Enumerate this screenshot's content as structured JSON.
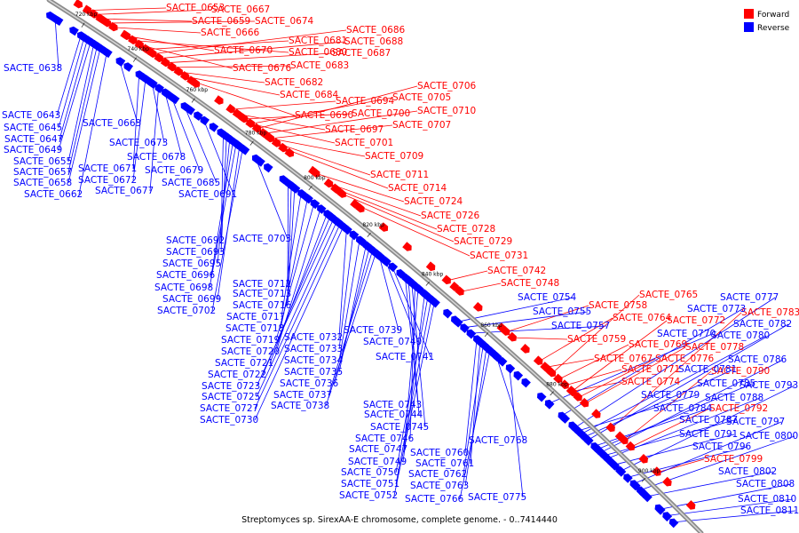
{
  "caption": "Streptomyces sp. SirexAA-E chromosome, complete genome. - 0..7414440",
  "legend": [
    {
      "label": "Forward",
      "color": "#ff0000"
    },
    {
      "label": "Reverse",
      "color": "#0000ff"
    }
  ],
  "colors": {
    "forward": "#ff0000",
    "reverse": "#0000ff",
    "backbone": "#9a9a9a"
  },
  "ticks": [
    {
      "label": "720 kbp",
      "t": 0.055
    },
    {
      "label": "740 kbp",
      "t": 0.135
    },
    {
      "label": "760 kbp",
      "t": 0.225
    },
    {
      "label": "780 kbp",
      "t": 0.315
    },
    {
      "label": "800 kbp",
      "t": 0.405
    },
    {
      "label": "820 kbp",
      "t": 0.495
    },
    {
      "label": "840 kbp",
      "t": 0.585
    },
    {
      "label": "860 kbp",
      "t": 0.675
    },
    {
      "label": "880 kbp",
      "t": 0.775
    },
    {
      "label": "900 kbp",
      "t": 0.915
    }
  ],
  "forward_genes": [
    {
      "label": "SACTE_0653",
      "t": 0.05
    },
    {
      "label": "SACTE_0667",
      "t": 0.06
    },
    {
      "label": "SACTE_0659",
      "t": 0.07
    },
    {
      "label": "SACTE_0674",
      "t": 0.08
    },
    {
      "label": "SACTE_0666",
      "t": 0.09
    },
    {
      "label": "SACTE_0686",
      "t": 0.15
    },
    {
      "label": "SACTE_0681",
      "t": 0.14
    },
    {
      "label": "SACTE_0688",
      "t": 0.16
    },
    {
      "label": "SACTE_0670",
      "t": 0.11
    },
    {
      "label": "SACTE_0680",
      "t": 0.12
    },
    {
      "label": "SACTE_0687",
      "t": 0.17
    },
    {
      "label": "SACTE_0676",
      "t": 0.13
    },
    {
      "label": "SACTE_0683",
      "t": 0.18
    },
    {
      "label": "SACTE_0682",
      "t": 0.19
    },
    {
      "label": "SACTE_0706",
      "t": 0.31
    },
    {
      "label": "SACTE_0684",
      "t": 0.2
    },
    {
      "label": "SACTE_0705",
      "t": 0.3
    },
    {
      "label": "SACTE_0694",
      "t": 0.27
    },
    {
      "label": "SACTE_0710",
      "t": 0.32
    },
    {
      "label": "SACTE_0690",
      "t": 0.21
    },
    {
      "label": "SACTE_0700",
      "t": 0.29
    },
    {
      "label": "SACTE_0707",
      "t": 0.33
    },
    {
      "label": "SACTE_0697",
      "t": 0.28
    },
    {
      "label": "SACTE_0701",
      "t": 0.3
    },
    {
      "label": "SACTE_0709",
      "t": 0.33
    },
    {
      "label": "SACTE_0711",
      "t": 0.34
    },
    {
      "label": "SACTE_0714",
      "t": 0.35
    },
    {
      "label": "SACTE_0724",
      "t": 0.4
    },
    {
      "label": "SACTE_0726",
      "t": 0.42
    },
    {
      "label": "SACTE_0728",
      "t": 0.43
    },
    {
      "label": "SACTE_0729",
      "t": 0.44
    },
    {
      "label": "SACTE_0731",
      "t": 0.46
    },
    {
      "label": "SACTE_0742",
      "t": 0.6
    },
    {
      "label": "SACTE_0748",
      "t": 0.62
    },
    {
      "label": "SACTE_0765",
      "t": 0.76
    },
    {
      "label": "SACTE_0758",
      "t": 0.69
    },
    {
      "label": "SACTE_0764",
      "t": 0.74
    },
    {
      "label": "SACTE_0772",
      "t": 0.79
    },
    {
      "label": "SACTE_0783",
      "t": 0.85
    },
    {
      "label": "SACTE_0759",
      "t": 0.7
    },
    {
      "label": "SACTE_0769",
      "t": 0.77
    },
    {
      "label": "SACTE_0778",
      "t": 0.81
    },
    {
      "label": "SACTE_0767",
      "t": 0.75
    },
    {
      "label": "SACTE_0776",
      "t": 0.8
    },
    {
      "label": "SACTE_0771",
      "t": 0.78
    },
    {
      "label": "SACTE_0790",
      "t": 0.87
    },
    {
      "label": "SACTE_0774",
      "t": 0.79
    },
    {
      "label": "SACTE_0792",
      "t": 0.88
    },
    {
      "label": "SACTE_0799",
      "t": 0.92
    }
  ],
  "reverse_genes": [
    {
      "label": "SACTE_0638",
      "t": 0.02
    },
    {
      "label": "SACTE_0643",
      "t": 0.06
    },
    {
      "label": "SACTE_0645",
      "t": 0.065
    },
    {
      "label": "SACTE_0663",
      "t": 0.12
    },
    {
      "label": "SACTE_0647",
      "t": 0.07
    },
    {
      "label": "SACTE_0649",
      "t": 0.075
    },
    {
      "label": "SACTE_0673",
      "t": 0.17
    },
    {
      "label": "SACTE_0655",
      "t": 0.08
    },
    {
      "label": "SACTE_0678",
      "t": 0.19
    },
    {
      "label": "SACTE_0671",
      "t": 0.15
    },
    {
      "label": "SACTE_0657",
      "t": 0.085
    },
    {
      "label": "SACTE_0679",
      "t": 0.2
    },
    {
      "label": "SACTE_0672",
      "t": 0.16
    },
    {
      "label": "SACTE_0658",
      "t": 0.09
    },
    {
      "label": "SACTE_0685",
      "t": 0.22
    },
    {
      "label": "SACTE_0662",
      "t": 0.1
    },
    {
      "label": "SACTE_0677",
      "t": 0.18
    },
    {
      "label": "SACTE_0691",
      "t": 0.25
    },
    {
      "label": "SACTE_0692",
      "t": 0.28
    },
    {
      "label": "SACTE_0703",
      "t": 0.33
    },
    {
      "label": "SACTE_0693",
      "t": 0.285
    },
    {
      "label": "SACTE_0695",
      "t": 0.29
    },
    {
      "label": "SACTE_0696",
      "t": 0.295
    },
    {
      "label": "SACTE_0712",
      "t": 0.38
    },
    {
      "label": "SACTE_0698",
      "t": 0.3
    },
    {
      "label": "SACTE_0713",
      "t": 0.385
    },
    {
      "label": "SACTE_0699",
      "t": 0.305
    },
    {
      "label": "SACTE_0716",
      "t": 0.39
    },
    {
      "label": "SACTE_0702",
      "t": 0.31
    },
    {
      "label": "SACTE_0717",
      "t": 0.4
    },
    {
      "label": "SACTE_0718",
      "t": 0.41
    },
    {
      "label": "SACTE_0739",
      "t": 0.52
    },
    {
      "label": "SACTE_0732",
      "t": 0.47
    },
    {
      "label": "SACTE_0719",
      "t": 0.42
    },
    {
      "label": "SACTE_0740",
      "t": 0.53
    },
    {
      "label": "SACTE_0733",
      "t": 0.48
    },
    {
      "label": "SACTE_0720",
      "t": 0.43
    },
    {
      "label": "SACTE_0741",
      "t": 0.54
    },
    {
      "label": "SACTE_0734",
      "t": 0.49
    },
    {
      "label": "SACTE_0721",
      "t": 0.44
    },
    {
      "label": "SACTE_0735",
      "t": 0.5
    },
    {
      "label": "SACTE_0722",
      "t": 0.445
    },
    {
      "label": "SACTE_0736",
      "t": 0.505
    },
    {
      "label": "SACTE_0723",
      "t": 0.45
    },
    {
      "label": "SACTE_0737",
      "t": 0.51
    },
    {
      "label": "SACTE_0725",
      "t": 0.455
    },
    {
      "label": "SACTE_0738",
      "t": 0.515
    },
    {
      "label": "SACTE_0727",
      "t": 0.46
    },
    {
      "label": "SACTE_0730",
      "t": 0.465
    },
    {
      "label": "SACTE_0754",
      "t": 0.64
    },
    {
      "label": "SACTE_0755",
      "t": 0.65
    },
    {
      "label": "SACTE_0757",
      "t": 0.66
    },
    {
      "label": "SACTE_0777",
      "t": 0.82
    },
    {
      "label": "SACTE_0773",
      "t": 0.8
    },
    {
      "label": "SACTE_0782",
      "t": 0.84
    },
    {
      "label": "SACTE_0770",
      "t": 0.78
    },
    {
      "label": "SACTE_0780",
      "t": 0.83
    },
    {
      "label": "SACTE_0786",
      "t": 0.86
    },
    {
      "label": "SACTE_0781",
      "t": 0.835
    },
    {
      "label": "SACTE_0785",
      "t": 0.855
    },
    {
      "label": "SACTE_0793",
      "t": 0.89
    },
    {
      "label": "SACTE_0779",
      "t": 0.825
    },
    {
      "label": "SACTE_0788",
      "t": 0.87
    },
    {
      "label": "SACTE_0784",
      "t": 0.85
    },
    {
      "label": "SACTE_0787",
      "t": 0.865
    },
    {
      "label": "SACTE_0797",
      "t": 0.91
    },
    {
      "label": "SACTE_0791",
      "t": 0.88
    },
    {
      "label": "SACTE_0800",
      "t": 0.92
    },
    {
      "label": "SACTE_0796",
      "t": 0.9
    },
    {
      "label": "SACTE_0802",
      "t": 0.93
    },
    {
      "label": "SACTE_0808",
      "t": 0.95
    },
    {
      "label": "SACTE_0810",
      "t": 0.96
    },
    {
      "label": "SACTE_0811",
      "t": 0.97
    },
    {
      "label": "SACTE_0743",
      "t": 0.56
    },
    {
      "label": "SACTE_0744",
      "t": 0.565
    },
    {
      "label": "SACTE_0745",
      "t": 0.57
    },
    {
      "label": "SACTE_0746",
      "t": 0.575
    },
    {
      "label": "SACTE_0768",
      "t": 0.7
    },
    {
      "label": "SACTE_0747",
      "t": 0.58
    },
    {
      "label": "SACTE_0760",
      "t": 0.67
    },
    {
      "label": "SACTE_0749",
      "t": 0.59
    },
    {
      "label": "SACTE_0761",
      "t": 0.675
    },
    {
      "label": "SACTE_0750",
      "t": 0.595
    },
    {
      "label": "SACTE_0762",
      "t": 0.68
    },
    {
      "label": "SACTE_0751",
      "t": 0.6
    },
    {
      "label": "SACTE_0763",
      "t": 0.685
    },
    {
      "label": "SACTE_0752",
      "t": 0.605
    },
    {
      "label": "SACTE_0766",
      "t": 0.69
    },
    {
      "label": "SACTE_0775",
      "t": 0.72
    }
  ]
}
